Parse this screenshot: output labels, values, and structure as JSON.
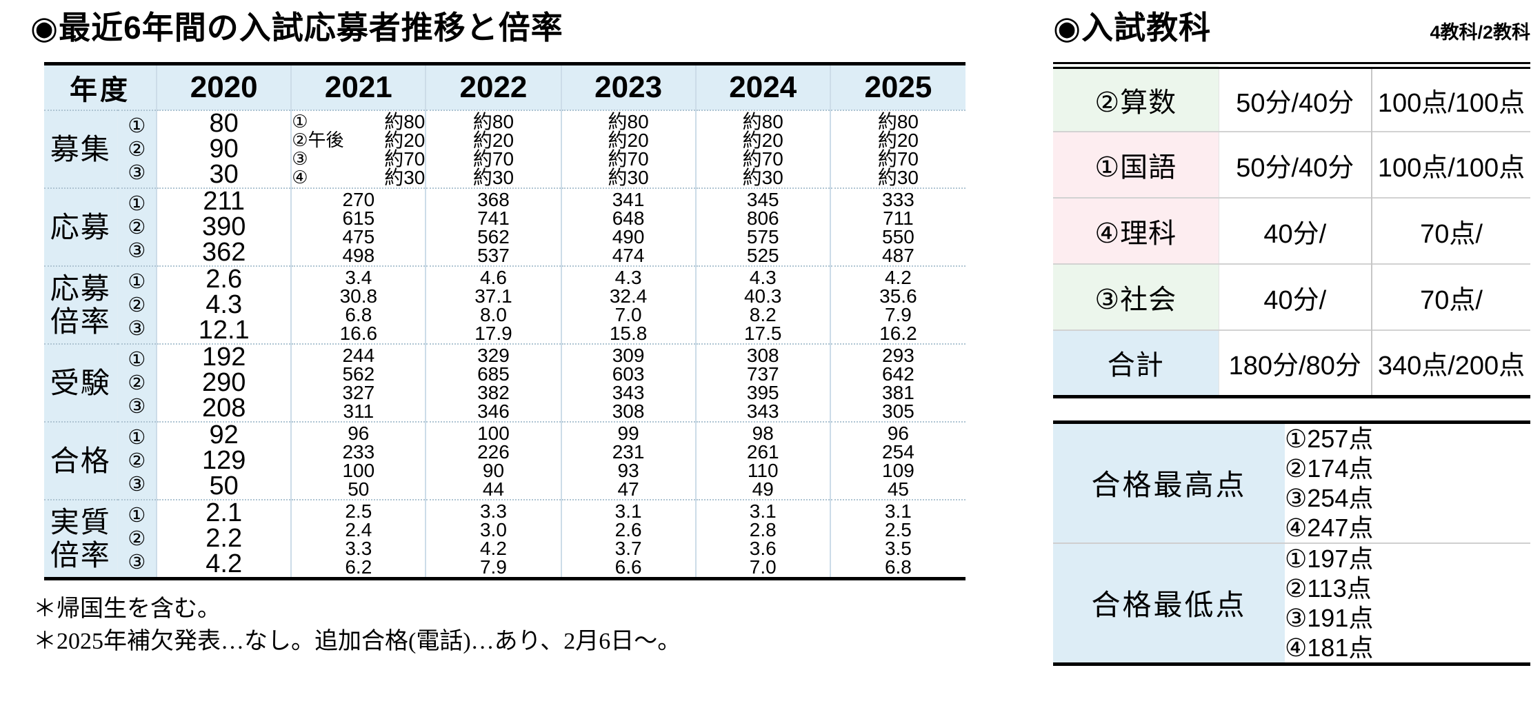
{
  "left": {
    "title": "◉最近6年間の入試応募者推移と倍率",
    "year_header": "年度",
    "years": [
      "2020",
      "2021",
      "2022",
      "2023",
      "2024",
      "2025"
    ],
    "rows": [
      {
        "label_lines": [
          "募集"
        ],
        "marks": [
          "①",
          "②",
          "③"
        ],
        "cells": [
          {
            "type": "big",
            "lines": [
              "80",
              "90",
              "30"
            ]
          },
          {
            "type": "pairs",
            "pairs": [
              [
                "①",
                "約80"
              ],
              [
                "②午後",
                "約20"
              ],
              [
                "③",
                "約70"
              ],
              [
                "④",
                "約30"
              ]
            ]
          },
          {
            "type": "small",
            "lines": [
              "約80",
              "約20",
              "約70",
              "約30"
            ]
          },
          {
            "type": "small",
            "lines": [
              "約80",
              "約20",
              "約70",
              "約30"
            ]
          },
          {
            "type": "small",
            "lines": [
              "約80",
              "約20",
              "約70",
              "約30"
            ]
          },
          {
            "type": "small",
            "lines": [
              "約80",
              "約20",
              "約70",
              "約30"
            ]
          }
        ]
      },
      {
        "label_lines": [
          "応募"
        ],
        "marks": [
          "①",
          "②",
          "③"
        ],
        "cells": [
          {
            "type": "big",
            "lines": [
              "211",
              "390",
              "362"
            ]
          },
          {
            "type": "small",
            "lines": [
              "270",
              "615",
              "475",
              "498"
            ]
          },
          {
            "type": "small",
            "lines": [
              "368",
              "741",
              "562",
              "537"
            ]
          },
          {
            "type": "small",
            "lines": [
              "341",
              "648",
              "490",
              "474"
            ]
          },
          {
            "type": "small",
            "lines": [
              "345",
              "806",
              "575",
              "525"
            ]
          },
          {
            "type": "small",
            "lines": [
              "333",
              "711",
              "550",
              "487"
            ]
          }
        ]
      },
      {
        "label_lines": [
          "応募",
          "倍率"
        ],
        "marks": [
          "①",
          "②",
          "③"
        ],
        "cells": [
          {
            "type": "big",
            "lines": [
              "2.6",
              "4.3",
              "12.1"
            ]
          },
          {
            "type": "small",
            "lines": [
              "3.4",
              "30.8",
              "6.8",
              "16.6"
            ]
          },
          {
            "type": "small",
            "lines": [
              "4.6",
              "37.1",
              "8.0",
              "17.9"
            ]
          },
          {
            "type": "small",
            "lines": [
              "4.3",
              "32.4",
              "7.0",
              "15.8"
            ]
          },
          {
            "type": "small",
            "lines": [
              "4.3",
              "40.3",
              "8.2",
              "17.5"
            ]
          },
          {
            "type": "small",
            "lines": [
              "4.2",
              "35.6",
              "7.9",
              "16.2"
            ]
          }
        ]
      },
      {
        "label_lines": [
          "受験"
        ],
        "marks": [
          "①",
          "②",
          "③"
        ],
        "cells": [
          {
            "type": "big",
            "lines": [
              "192",
              "290",
              "208"
            ]
          },
          {
            "type": "small",
            "lines": [
              "244",
              "562",
              "327",
              "311"
            ]
          },
          {
            "type": "small",
            "lines": [
              "329",
              "685",
              "382",
              "346"
            ]
          },
          {
            "type": "small",
            "lines": [
              "309",
              "603",
              "343",
              "308"
            ]
          },
          {
            "type": "small",
            "lines": [
              "308",
              "737",
              "395",
              "343"
            ]
          },
          {
            "type": "small",
            "lines": [
              "293",
              "642",
              "381",
              "305"
            ]
          }
        ]
      },
      {
        "label_lines": [
          "合格"
        ],
        "marks": [
          "①",
          "②",
          "③"
        ],
        "cells": [
          {
            "type": "big",
            "lines": [
              "92",
              "129",
              "50"
            ]
          },
          {
            "type": "small",
            "lines": [
              "96",
              "233",
              "100",
              "50"
            ]
          },
          {
            "type": "small",
            "lines": [
              "100",
              "226",
              "90",
              "44"
            ]
          },
          {
            "type": "small",
            "lines": [
              "99",
              "231",
              "93",
              "47"
            ]
          },
          {
            "type": "small",
            "lines": [
              "98",
              "261",
              "110",
              "49"
            ]
          },
          {
            "type": "small",
            "lines": [
              "96",
              "254",
              "109",
              "45"
            ]
          }
        ]
      },
      {
        "label_lines": [
          "実質",
          "倍率"
        ],
        "marks": [
          "①",
          "②",
          "③"
        ],
        "cells": [
          {
            "type": "big",
            "lines": [
              "2.1",
              "2.2",
              "4.2"
            ]
          },
          {
            "type": "small",
            "lines": [
              "2.5",
              "2.4",
              "3.3",
              "6.2"
            ]
          },
          {
            "type": "small",
            "lines": [
              "3.3",
              "3.0",
              "4.2",
              "7.9"
            ]
          },
          {
            "type": "small",
            "lines": [
              "3.1",
              "2.6",
              "3.7",
              "6.6"
            ]
          },
          {
            "type": "small",
            "lines": [
              "3.1",
              "2.8",
              "3.6",
              "7.0"
            ]
          },
          {
            "type": "small",
            "lines": [
              "3.1",
              "2.5",
              "3.5",
              "6.8"
            ]
          }
        ]
      }
    ],
    "footnotes": [
      "＊帰国生を含む。",
      "＊2025年補欠発表…なし。追加合格(電話)…あり、2月6日～。"
    ]
  },
  "right": {
    "title": "◉入試教科",
    "subtitle": "4教科/2教科",
    "subjects": {
      "rows": [
        {
          "label": "②算数",
          "time": "50分/40分",
          "points": "100点/100点",
          "tint": "green"
        },
        {
          "label": "①国語",
          "time": "50分/40分",
          "points": "100点/100点",
          "tint": "pink"
        },
        {
          "label": "④理科",
          "time": "40分/",
          "points": "70点/",
          "tint": "pink"
        },
        {
          "label": "③社会",
          "time": "40分/",
          "points": "70点/",
          "tint": "green"
        },
        {
          "label": "合計",
          "time": "180分/80分",
          "points": "340点/200点",
          "tint": "blue"
        }
      ]
    },
    "scores": {
      "rows": [
        {
          "label": "合格最高点",
          "values": [
            "①257点",
            "②174点",
            "③254点",
            "④247点"
          ]
        },
        {
          "label": "合格最低点",
          "values": [
            "①197点",
            "②113点",
            "③191点",
            "④181点"
          ]
        }
      ]
    }
  }
}
